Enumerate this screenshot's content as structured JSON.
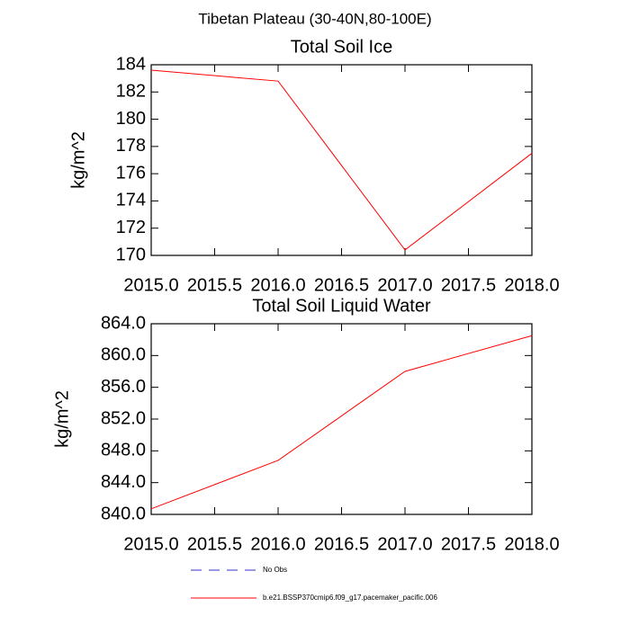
{
  "title": "Tibetan Plateau (30-40N,80-100E)",
  "chart_data": [
    {
      "type": "line",
      "title": "Total Soil Ice",
      "y_label": "kg/m^2",
      "x": [
        2015,
        2016,
        2017,
        2018
      ],
      "series": [
        {
          "color": "#ff0000",
          "values": [
            183.6,
            182.8,
            170.4,
            177.5
          ]
        }
      ],
      "xlim": [
        2015,
        2018
      ],
      "xticks": [
        {
          "value": 2015,
          "label": "2015.0"
        },
        {
          "value": 2015.5,
          "label": "2015.5"
        },
        {
          "value": 2016,
          "label": "2016.0"
        },
        {
          "value": 2016.5,
          "label": "2016.5"
        },
        {
          "value": 2017,
          "label": "2017.0"
        },
        {
          "value": 2017.5,
          "label": "2017.5"
        },
        {
          "value": 2018,
          "label": "2018.0"
        }
      ],
      "ylim": [
        170,
        184
      ],
      "yticks": [
        170,
        172,
        174,
        176,
        178,
        180,
        182,
        184
      ]
    },
    {
      "type": "line",
      "title": "Total Soil Liquid Water",
      "y_label": "kg/m^2",
      "x": [
        2015,
        2016,
        2017,
        2018
      ],
      "series": [
        {
          "color": "#ff0000",
          "values": [
            840.7,
            846.8,
            858.0,
            862.5
          ]
        }
      ],
      "xlim": [
        2015,
        2018
      ],
      "xticks": [
        {
          "value": 2015,
          "label": "2015.0"
        },
        {
          "value": 2015.5,
          "label": "2015.5"
        },
        {
          "value": 2016,
          "label": "2016.0"
        },
        {
          "value": 2016.5,
          "label": "2016.5"
        },
        {
          "value": 2017,
          "label": "2017.0"
        },
        {
          "value": 2017.5,
          "label": "2017.5"
        },
        {
          "value": 2018,
          "label": "2018.0"
        }
      ],
      "ylim": [
        840,
        864
      ],
      "yticks": [
        {
          "value": 840,
          "label": "840.0"
        },
        {
          "value": 844,
          "label": "844.0"
        },
        {
          "value": 848,
          "label": "848.0"
        },
        {
          "value": 852,
          "label": "852.0"
        },
        {
          "value": 856,
          "label": "856.0"
        },
        {
          "value": 860,
          "label": "860.0"
        },
        {
          "value": 864,
          "label": "864.0"
        }
      ]
    }
  ],
  "legend": [
    {
      "name": "No Obs",
      "color": "#3333cc",
      "dash": true
    },
    {
      "name": "b.e21.BSSP370cmip6.f09_g17.pacemaker_pacific.006",
      "color": "#ff0000",
      "dash": false
    }
  ]
}
